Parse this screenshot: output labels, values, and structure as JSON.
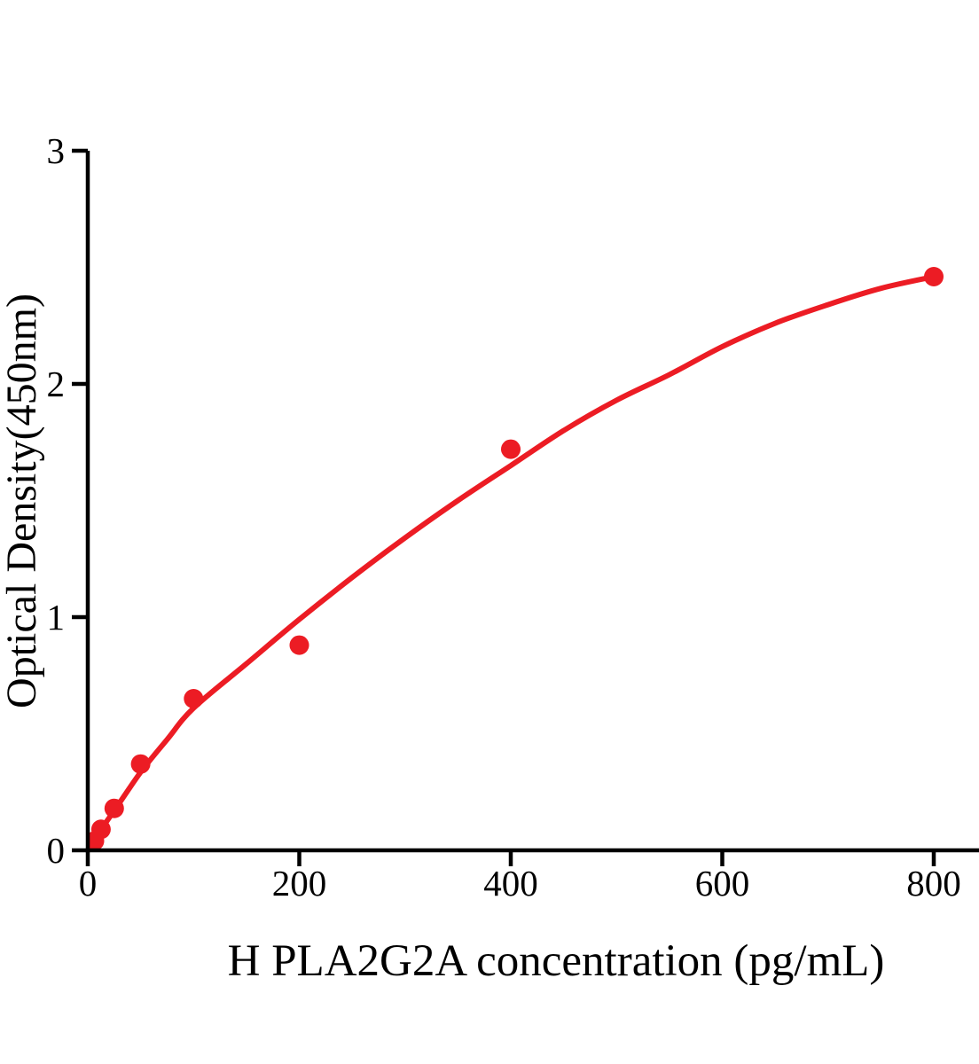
{
  "chart_data": {
    "type": "scatter",
    "title": "",
    "xlabel": "H PLA2G2A concentration (pg/mL)",
    "ylabel": "Optical Density(450nm)",
    "xlim": [
      0,
      800
    ],
    "ylim": [
      0,
      3
    ],
    "x_ticks": [
      0,
      200,
      400,
      600,
      800
    ],
    "y_ticks": [
      0,
      1,
      2,
      3
    ],
    "grid": false,
    "legend": false,
    "point_color": "#EC1C24",
    "curve_color": "#EC1C24",
    "axis_color": "#000000",
    "background_color": "#ffffff",
    "points": [
      {
        "conc": 6.25,
        "od": 0.04
      },
      {
        "conc": 12.5,
        "od": 0.09
      },
      {
        "conc": 25,
        "od": 0.18
      },
      {
        "conc": 50,
        "od": 0.37
      },
      {
        "conc": 100,
        "od": 0.65
      },
      {
        "conc": 200,
        "od": 0.88
      },
      {
        "conc": 400,
        "od": 1.72
      },
      {
        "conc": 800,
        "od": 2.46
      }
    ],
    "fit_curve": [
      [
        0,
        0.0
      ],
      [
        6.25,
        0.045
      ],
      [
        12.5,
        0.09
      ],
      [
        25,
        0.17
      ],
      [
        50,
        0.335
      ],
      [
        75,
        0.475
      ],
      [
        100,
        0.61
      ],
      [
        150,
        0.8
      ],
      [
        200,
        0.99
      ],
      [
        250,
        1.17
      ],
      [
        300,
        1.34
      ],
      [
        350,
        1.5
      ],
      [
        400,
        1.65
      ],
      [
        450,
        1.8
      ],
      [
        500,
        1.93
      ],
      [
        550,
        2.04
      ],
      [
        600,
        2.16
      ],
      [
        650,
        2.26
      ],
      [
        700,
        2.34
      ],
      [
        750,
        2.41
      ],
      [
        800,
        2.46
      ]
    ]
  }
}
